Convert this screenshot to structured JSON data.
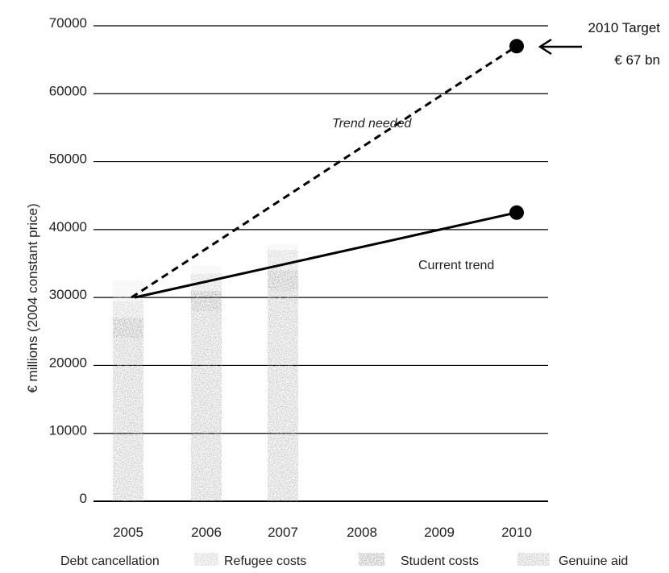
{
  "chart_data": {
    "type": "bar",
    "categories": [
      "2005",
      "2006",
      "2007",
      "2008",
      "2009",
      "2010"
    ],
    "ylabel": "€ millions (2004 constant price)",
    "ylim": [
      0,
      70000
    ],
    "yticks": [
      0,
      10000,
      20000,
      30000,
      40000,
      50000,
      60000,
      70000
    ],
    "grid": true,
    "stack_order": [
      "Genuine aid",
      "Student costs",
      "Refugee costs",
      "Debt cancellation"
    ],
    "series": [
      {
        "name": "Genuine aid",
        "values": [
          24000,
          28000,
          31000,
          null,
          null,
          null
        ]
      },
      {
        "name": "Student costs",
        "values": [
          3000,
          3000,
          3000,
          null,
          null,
          null
        ]
      },
      {
        "name": "Refugee costs",
        "values": [
          2500,
          2500,
          3000,
          null,
          null,
          null
        ]
      },
      {
        "name": "Debt cancellation",
        "values": [
          3000,
          1200,
          800,
          null,
          null,
          null
        ]
      }
    ],
    "lines": [
      {
        "name": "Trend needed",
        "style": "dashed",
        "points": [
          [
            "2005",
            30000
          ],
          [
            "2010",
            67000
          ]
        ]
      },
      {
        "name": "Current trend",
        "style": "solid",
        "points": [
          [
            "2005",
            30000
          ],
          [
            "2010",
            42500
          ]
        ]
      }
    ],
    "annotations": [
      {
        "text": "Trend needed",
        "x": "2007.2",
        "y": 55000
      },
      {
        "text": "Current trend",
        "x": "2008.3",
        "y": 34000
      }
    ],
    "target": {
      "line1": "2010 Target",
      "line2": "€ 67 bn",
      "x": "2010",
      "y": 67000
    },
    "legend": [
      "Debt cancellation",
      "Refugee costs",
      "Student costs",
      "Genuine aid"
    ],
    "legend_position": "bottom",
    "colors": {
      "Genuine aid": "#a9a9a9",
      "Student costs": "#8a8a8a",
      "Refugee costs": "#bdbdbd",
      "Debt cancellation": "#e6e6e6",
      "line": "#000000",
      "grid": "#000000"
    }
  }
}
